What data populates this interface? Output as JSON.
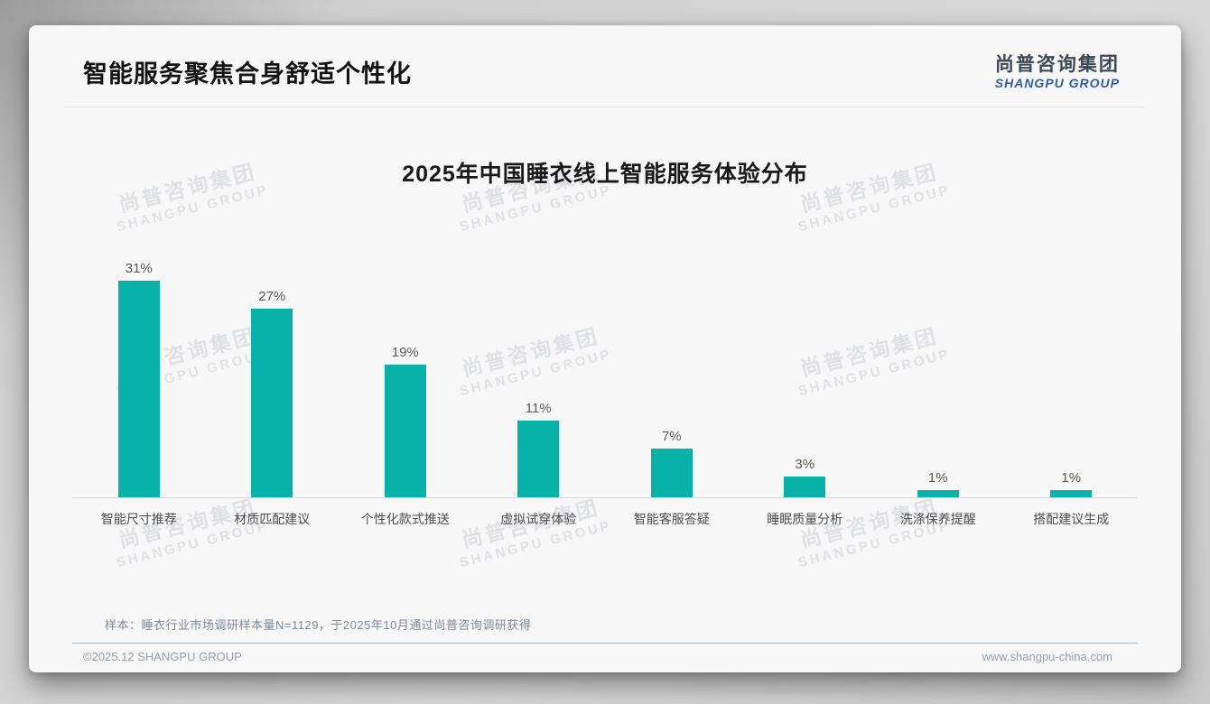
{
  "page": {
    "title": "智能服务聚焦合身舒适个性化",
    "logo": {
      "cn": "尚普咨询集团",
      "en": "SHANGPU GROUP"
    }
  },
  "chart_data": {
    "type": "bar",
    "title": "2025年中国睡衣线上智能服务体验分布",
    "categories": [
      "智能尺寸推荐",
      "材质匹配建议",
      "个性化款式推送",
      "虚拟试穿体验",
      "智能客服答疑",
      "睡眠质量分析",
      "洗涤保养提醒",
      "搭配建议生成"
    ],
    "values": [
      31,
      27,
      19,
      11,
      7,
      3,
      1,
      1
    ],
    "unit": "%",
    "ylim": [
      0,
      35
    ],
    "grid": false,
    "legend": null,
    "bar_color": "#09b2a8",
    "value_label_color": "#595959"
  },
  "watermark": {
    "cn": "尚普咨询集团",
    "en": "SHANGPU GROUP"
  },
  "footnote": "样本：睡衣行业市场调研样本量N=1129，于2025年10月通过尚普咨询调研获得",
  "footer": {
    "left": "©2025.12 SHANGPU GROUP",
    "right": "www.shangpu-china.com"
  },
  "colors": {
    "accent": "#09b2a8",
    "logo_blue": "#2d5f9e"
  }
}
